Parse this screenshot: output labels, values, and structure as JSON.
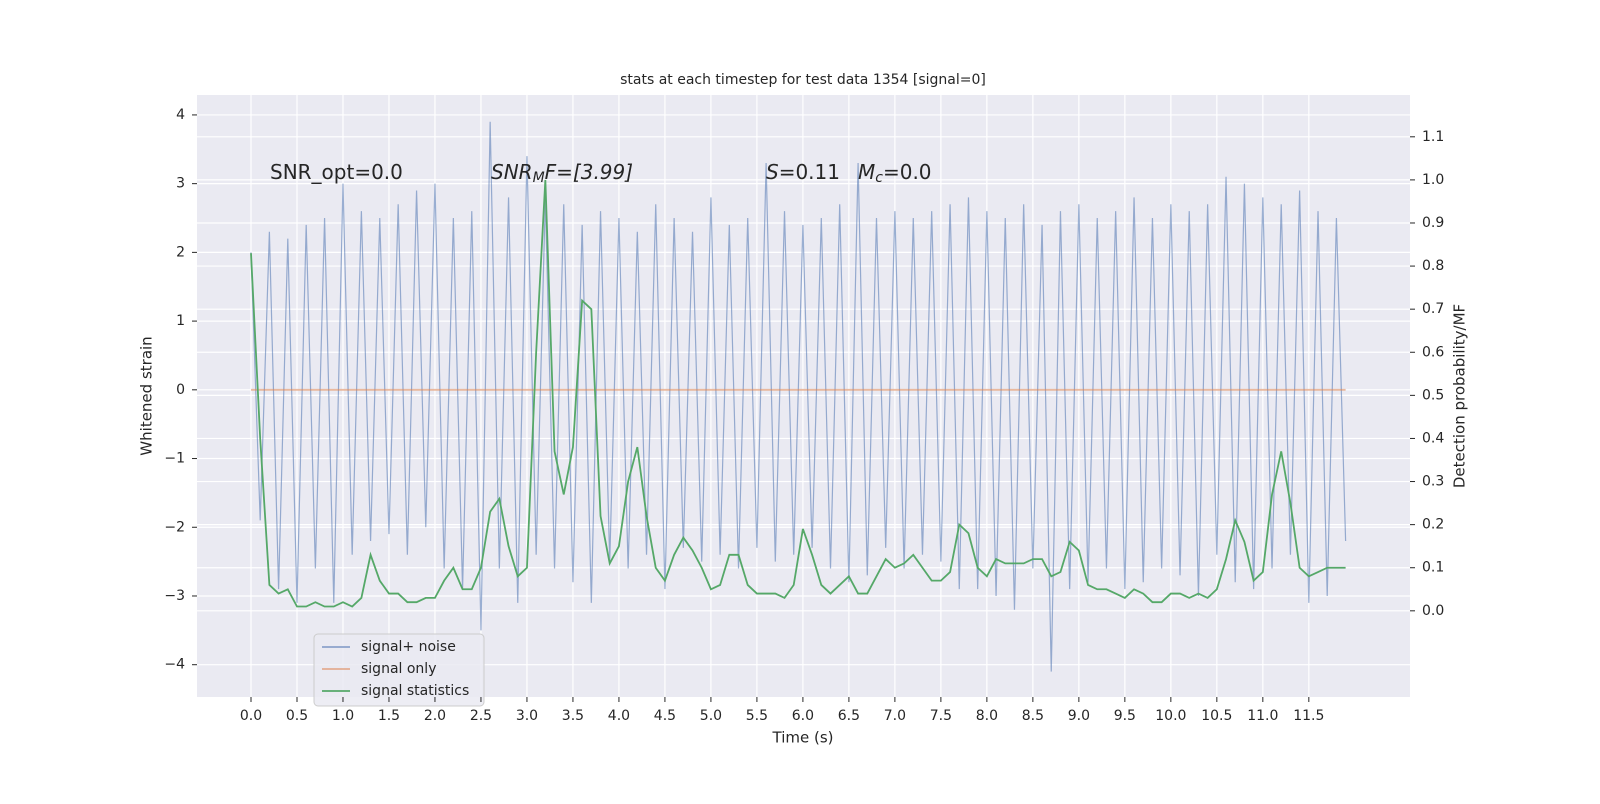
{
  "chart_data": {
    "type": "line",
    "title": "stats at each timestep for test data 1354 [signal=0]",
    "xlabel": "Time (s)",
    "ylabel": "Whitened strain",
    "y2label": "Detection probability/MF",
    "annotations": [
      [
        "SNR_opt=0.0"
      ],
      [
        "SNR",
        "M",
        "F=[3.99]"
      ],
      [
        "S",
        "=0.11"
      ],
      [
        "M",
        "c",
        "=0.0"
      ]
    ],
    "xlim": [
      -0.587,
      12.6
    ],
    "ylim": [
      -4.47,
      4.29
    ],
    "y2lim": [
      -0.2,
      1.197
    ],
    "xticks": [
      {
        "value": 0,
        "label": "0.0"
      },
      0.5,
      {
        "value": 1,
        "label": "1.0"
      },
      1.5,
      {
        "value": 2,
        "label": "2.0"
      },
      2.5,
      {
        "value": 3,
        "label": "3.0"
      },
      3.5,
      {
        "value": 4,
        "label": "4.0"
      },
      4.5,
      {
        "value": 5,
        "label": "5.0"
      },
      5.5,
      {
        "value": 6,
        "label": "6.0"
      },
      6.5,
      {
        "value": 7,
        "label": "7.0"
      },
      7.5,
      {
        "value": 8,
        "label": "8.0"
      },
      8.5,
      {
        "value": 9,
        "label": "9.0"
      },
      9.5,
      {
        "value": 10,
        "label": "10.0"
      },
      10.5,
      {
        "value": 11,
        "label": "11.0"
      },
      11.5
    ],
    "yticks": [
      {
        "value": -4,
        "label": "−4"
      },
      {
        "value": -3,
        "label": "−3"
      },
      {
        "value": -2,
        "label": "−2"
      },
      {
        "value": -1,
        "label": "−1"
      },
      0,
      1,
      2,
      3,
      4
    ],
    "y2ticks": [
      {
        "value": 0,
        "label": "0.0"
      },
      0.1,
      0.2,
      0.3,
      0.4,
      0.5,
      0.6,
      0.7,
      0.8,
      0.9,
      {
        "value": 1,
        "label": "1.0"
      },
      1.1
    ],
    "grid": true,
    "legend": "lower left",
    "x": [
      0,
      0.1,
      0.2,
      0.3,
      0.4,
      0.5,
      0.6,
      0.7,
      0.8,
      0.9,
      1,
      1.1,
      1.2,
      1.3,
      1.4,
      1.5,
      1.6,
      1.7,
      1.8,
      1.9,
      2,
      2.1,
      2.2,
      2.3,
      2.4,
      2.5,
      2.6,
      2.7,
      2.8,
      2.9,
      3,
      3.1,
      3.2,
      3.3,
      3.4,
      3.5,
      3.6,
      3.7,
      3.8,
      3.9,
      4,
      4.1,
      4.2,
      4.3,
      4.4,
      4.5,
      4.6,
      4.7,
      4.8,
      4.9,
      5,
      5.1,
      5.2,
      5.3,
      5.4,
      5.5,
      5.6,
      5.7,
      5.8,
      5.9,
      6,
      6.1,
      6.2,
      6.3,
      6.4,
      6.5,
      6.6,
      6.7,
      6.8,
      6.9,
      7,
      7.1,
      7.2,
      7.3,
      7.4,
      7.5,
      7.6,
      7.7,
      7.8,
      7.9,
      8,
      8.1,
      8.2,
      8.3,
      8.4,
      8.5,
      8.6,
      8.7,
      8.8,
      8.9,
      9,
      9.1,
      9.2,
      9.3,
      9.4,
      9.5,
      9.6,
      9.7,
      9.8,
      9.9,
      10,
      10.1,
      10.2,
      10.3,
      10.4,
      10.5,
      10.6,
      10.7,
      10.8,
      10.9,
      11,
      11.1,
      11.2,
      11.3,
      11.4,
      11.5,
      11.6,
      11.7,
      11.8,
      11.9
    ],
    "series": [
      {
        "name": "signal+ noise",
        "color": "#4c72b0",
        "values": [
          2.0,
          -1.9,
          2.3,
          -2.9,
          2.2,
          -3.1,
          2.4,
          -2.6,
          2.5,
          -3.1,
          3.0,
          -2.4,
          2.6,
          -2.2,
          2.5,
          -2.1,
          2.7,
          -2.4,
          2.9,
          -2.0,
          3.0,
          -2.6,
          2.5,
          -2.9,
          2.6,
          -3.5,
          3.9,
          -2.6,
          2.8,
          -3.1,
          3.4,
          -2.4,
          2.8,
          -2.6,
          2.7,
          -2.8,
          2.4,
          -3.1,
          2.6,
          -2.5,
          2.5,
          -2.6,
          2.3,
          -2.4,
          2.7,
          -2.9,
          2.5,
          -2.3,
          2.3,
          -2.5,
          2.8,
          -2.4,
          2.4,
          -2.6,
          2.5,
          -2.3,
          3.3,
          -2.5,
          2.6,
          -2.4,
          2.4,
          -2.3,
          2.5,
          -2.6,
          2.7,
          -2.8,
          3.3,
          -2.7,
          2.5,
          -2.3,
          2.6,
          -2.6,
          2.5,
          -2.4,
          2.6,
          -2.5,
          2.7,
          -2.9,
          2.8,
          -2.9,
          2.6,
          -3.0,
          2.5,
          -3.2,
          2.7,
          -2.6,
          2.4,
          -4.1,
          2.6,
          -2.9,
          2.7,
          -2.8,
          2.5,
          -2.6,
          2.6,
          -2.9,
          2.8,
          -2.8,
          2.5,
          -2.6,
          2.7,
          -2.7,
          2.6,
          -3.0,
          2.7,
          -2.4,
          3.1,
          -2.8,
          3.0,
          -2.9,
          2.8,
          -2.6,
          2.7,
          -2.4,
          2.9,
          -3.1,
          2.6,
          -3.0,
          2.5,
          -2.2
        ]
      },
      {
        "name": "signal only",
        "color": "#dd8452",
        "x": [
          0,
          11.9
        ],
        "values": [
          0,
          0
        ]
      },
      {
        "name": "signal statistics",
        "color": "#55a868",
        "axis": "y2",
        "values": [
          0.83,
          0.4,
          0.06,
          0.04,
          0.05,
          0.01,
          0.01,
          0.02,
          0.01,
          0.01,
          0.02,
          0.01,
          0.03,
          0.13,
          0.07,
          0.04,
          0.04,
          0.02,
          0.02,
          0.03,
          0.03,
          0.07,
          0.1,
          0.05,
          0.05,
          0.1,
          0.23,
          0.26,
          0.15,
          0.08,
          0.1,
          0.6,
          1.0,
          0.37,
          0.27,
          0.38,
          0.72,
          0.7,
          0.22,
          0.11,
          0.15,
          0.3,
          0.38,
          0.22,
          0.1,
          0.07,
          0.13,
          0.17,
          0.14,
          0.1,
          0.05,
          0.06,
          0.13,
          0.13,
          0.06,
          0.04,
          0.04,
          0.04,
          0.03,
          0.06,
          0.19,
          0.13,
          0.06,
          0.04,
          0.06,
          0.08,
          0.04,
          0.04,
          0.08,
          0.12,
          0.1,
          0.11,
          0.13,
          0.1,
          0.07,
          0.07,
          0.09,
          0.2,
          0.18,
          0.1,
          0.08,
          0.12,
          0.11,
          0.11,
          0.11,
          0.12,
          0.12,
          0.08,
          0.09,
          0.16,
          0.14,
          0.06,
          0.05,
          0.05,
          0.04,
          0.03,
          0.05,
          0.04,
          0.02,
          0.02,
          0.04,
          0.04,
          0.03,
          0.04,
          0.03,
          0.05,
          0.12,
          0.21,
          0.16,
          0.07,
          0.09,
          0.27,
          0.37,
          0.25,
          0.1,
          0.08,
          0.09,
          0.1,
          0.1,
          0.1
        ]
      }
    ]
  }
}
